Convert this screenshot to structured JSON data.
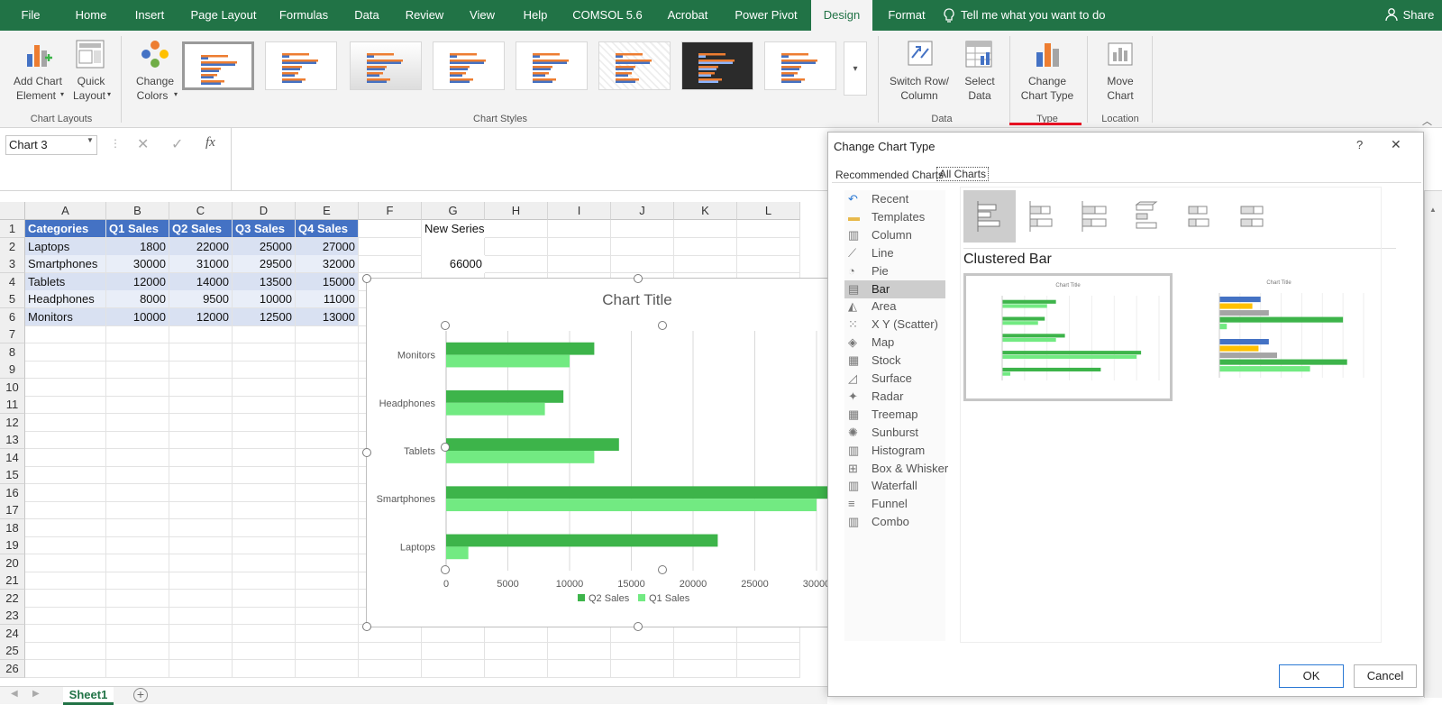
{
  "colors": {
    "excel_green": "#217346",
    "table_header": "#4472c4",
    "q2": "#3db44a",
    "q1": "#72ea82",
    "accent_red": "#e81123"
  },
  "menu": {
    "tabs": [
      "File",
      "Home",
      "Insert",
      "Page Layout",
      "Formulas",
      "Data",
      "Review",
      "View",
      "Help",
      "COMSOL 5.6",
      "Acrobat",
      "Power Pivot",
      "Design",
      "Format"
    ],
    "active": "Design",
    "tell_me": "Tell me what you want to do",
    "share": "Share"
  },
  "ribbon": {
    "add_chart_element": [
      "Add Chart",
      "Element"
    ],
    "quick_layout": [
      "Quick",
      "Layout"
    ],
    "change_colors": [
      "Change",
      "Colors"
    ],
    "switch_row_col": [
      "Switch Row/",
      "Column"
    ],
    "select_data": [
      "Select",
      "Data"
    ],
    "change_chart_type": [
      "Change",
      "Chart Type"
    ],
    "move_chart": [
      "Move",
      "Chart"
    ],
    "groups": {
      "chart_layouts": "Chart Layouts",
      "chart_styles": "Chart Styles",
      "data": "Data",
      "type": "Type",
      "location": "Location"
    }
  },
  "formula_bar": {
    "name_box": "Chart 3",
    "fx": "fx",
    "formula": ""
  },
  "sheet": {
    "columns": [
      "A",
      "B",
      "C",
      "D",
      "E",
      "F",
      "G",
      "H",
      "I",
      "J",
      "K",
      "L"
    ],
    "rows": [
      "1",
      "2",
      "3",
      "4",
      "5",
      "6",
      "7",
      "8",
      "9",
      "10",
      "11",
      "12",
      "13",
      "14",
      "15",
      "16",
      "17",
      "18",
      "19",
      "20",
      "21",
      "22",
      "23",
      "24",
      "25",
      "26"
    ],
    "headers": [
      "Categories",
      "Q1 Sales",
      "Q2 Sales",
      "Q3 Sales",
      "Q4 Sales"
    ],
    "data": [
      [
        "Laptops",
        "1800",
        "22000",
        "25000",
        "27000"
      ],
      [
        "Smartphones",
        "30000",
        "31000",
        "29500",
        "32000"
      ],
      [
        "Tablets",
        "12000",
        "14000",
        "13500",
        "15000"
      ],
      [
        "Headphones",
        "8000",
        "9500",
        "10000",
        "11000"
      ],
      [
        "Monitors",
        "10000",
        "12000",
        "12500",
        "13000"
      ]
    ],
    "g1": "New Series",
    "g3": "66000",
    "tab": "Sheet1"
  },
  "chart_data": {
    "type": "bar",
    "title": "Chart Title",
    "categories": [
      "Laptops",
      "Smartphones",
      "Tablets",
      "Headphones",
      "Monitors"
    ],
    "series": [
      {
        "name": "Q2 Sales",
        "values": [
          22000,
          31000,
          14000,
          9500,
          12000
        ]
      },
      {
        "name": "Q1 Sales",
        "values": [
          1800,
          30000,
          12000,
          8000,
          10000
        ]
      }
    ],
    "xlim": [
      0,
      35000
    ],
    "xticks": [
      "0",
      "5000",
      "10000",
      "15000",
      "20000",
      "25000",
      "30000"
    ],
    "legend": "bottom",
    "grid": true
  },
  "dialog": {
    "title": "Change Chart Type",
    "help": "?",
    "close": "✕",
    "tabs": [
      "Recommended Charts",
      "All Charts"
    ],
    "types": [
      "Recent",
      "Templates",
      "Column",
      "Line",
      "Pie",
      "Bar",
      "Area",
      "X Y (Scatter)",
      "Map",
      "Stock",
      "Surface",
      "Radar",
      "Treemap",
      "Sunburst",
      "Histogram",
      "Box & Whisker",
      "Waterfall",
      "Funnel",
      "Combo"
    ],
    "selected": "Bar",
    "subtype_title": "Clustered Bar",
    "preview_title": "Chart Title",
    "ok": "OK",
    "cancel": "Cancel"
  }
}
